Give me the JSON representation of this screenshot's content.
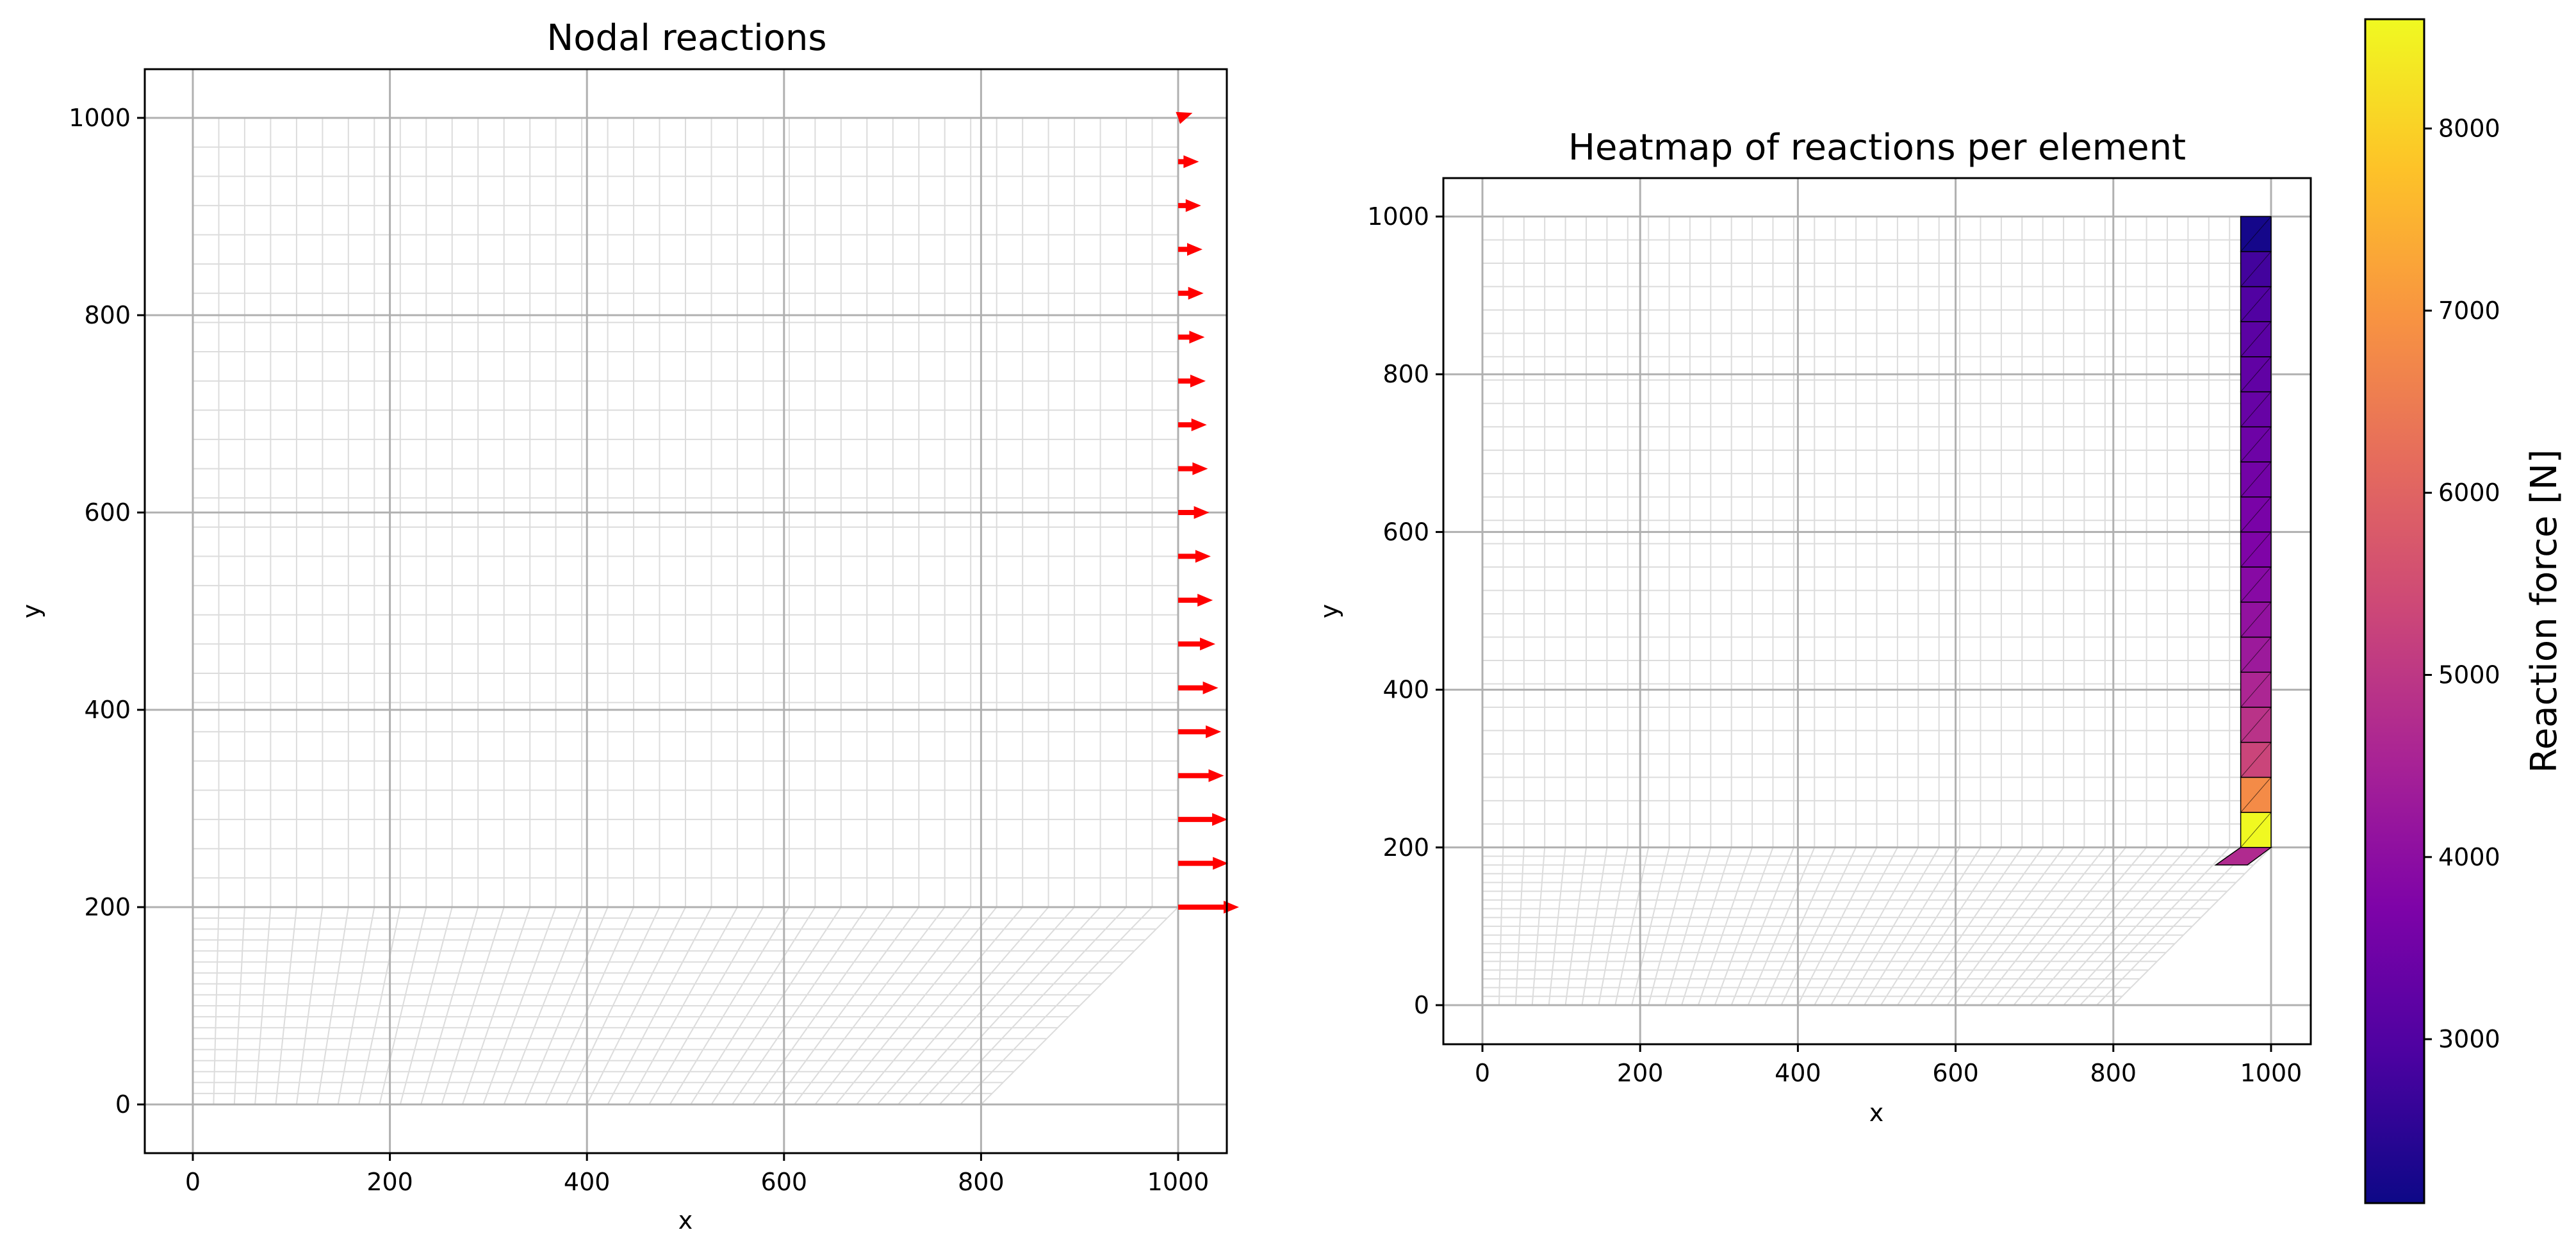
{
  "chart_data": [
    {
      "type": "quiver",
      "title": "Nodal reactions",
      "xlabel": "x",
      "ylabel": "y",
      "xlim": [
        -50,
        1050
      ],
      "ylim": [
        -50,
        1050
      ],
      "xticks": [
        0,
        200,
        400,
        600,
        800,
        1000
      ],
      "yticks": [
        0,
        200,
        400,
        600,
        800,
        1000
      ],
      "grid": true,
      "arrow_color": "#ff0000",
      "mesh_color": "#d9d9d9",
      "nodes_y": [
        200,
        244.4,
        288.9,
        333.3,
        377.8,
        422.2,
        466.7,
        511.1,
        555.6,
        600,
        644.4,
        688.9,
        733.3,
        777.8,
        822.2,
        866.7,
        911.1,
        955.6,
        1000
      ],
      "reaction_x": [
        8500,
        7000,
        6900,
        6400,
        6000,
        5600,
        5200,
        4850,
        4550,
        4350,
        4150,
        4000,
        3850,
        3700,
        3550,
        3400,
        3200,
        2900,
        2000
      ],
      "reaction_y": [
        0,
        0,
        0,
        0,
        0,
        0,
        0,
        0,
        0,
        0,
        0,
        0,
        0,
        0,
        0,
        0,
        0,
        0,
        700
      ]
    },
    {
      "type": "heatmap",
      "title": "Heatmap of reactions per element",
      "xlabel": "x",
      "ylabel": "y",
      "xlim": [
        -50,
        1050
      ],
      "ylim": [
        -50,
        1050
      ],
      "xticks": [
        0,
        200,
        400,
        600,
        800,
        1000
      ],
      "yticks": [
        0,
        200,
        400,
        600,
        800,
        1000
      ],
      "grid": true,
      "colormap": "plasma",
      "colorbar_label": "Reaction force [N]",
      "colorbar_ticks": [
        3000,
        4000,
        5000,
        6000,
        7000,
        8000
      ],
      "vmin": 2100,
      "vmax": 8600,
      "element_y_bottom": [
        200,
        244.4,
        288.9,
        333.3,
        377.8,
        422.2,
        466.7,
        511.1,
        555.6,
        600,
        644.4,
        688.9,
        733.3,
        777.8,
        822.2,
        866.7,
        911.1,
        955.6
      ],
      "element_values": [
        8600,
        6800,
        5300,
        4900,
        4600,
        4300,
        4100,
        3900,
        3750,
        3650,
        3550,
        3450,
        3350,
        3250,
        3150,
        3000,
        2800,
        2200
      ],
      "corner_element_value": 4700
    }
  ]
}
